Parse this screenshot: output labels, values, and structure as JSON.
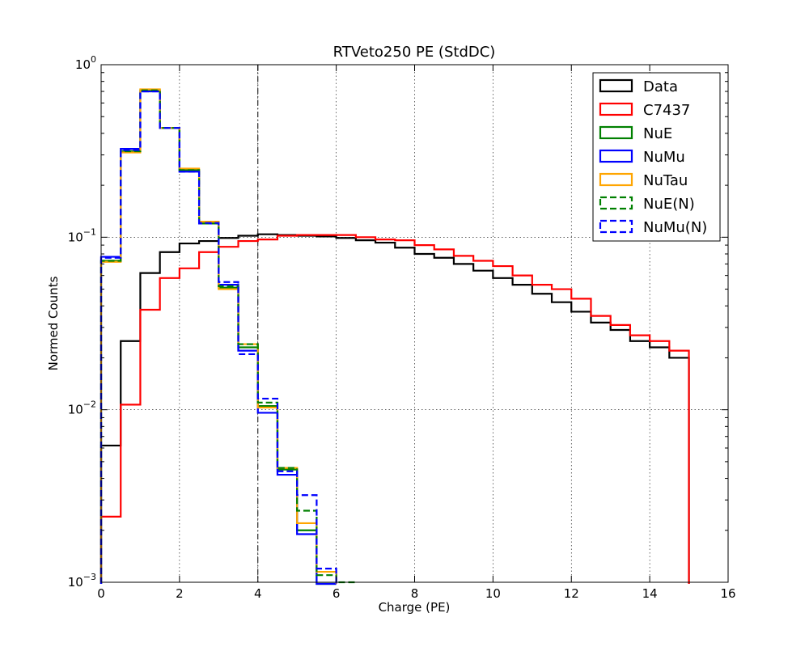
{
  "chart_data": {
    "type": "line",
    "title": "RTVeto250 PE (StdDC)",
    "xlabel": "Charge (PE)",
    "ylabel": "Normed Counts",
    "xlim": [
      0,
      16
    ],
    "ylim": [
      0.001,
      1
    ],
    "yscale": "log",
    "grid": true,
    "legend_position": "top-right",
    "x_ticks": [
      {
        "value": 0,
        "label": "0"
      },
      {
        "value": 2,
        "label": "2"
      },
      {
        "value": 4,
        "label": "4"
      },
      {
        "value": 6,
        "label": "6"
      },
      {
        "value": 8,
        "label": "8"
      },
      {
        "value": 10,
        "label": "10"
      },
      {
        "value": 12,
        "label": "12"
      },
      {
        "value": 14,
        "label": "14"
      },
      {
        "value": 16,
        "label": "16"
      }
    ],
    "y_ticks": [
      {
        "value": 0.001,
        "base": "10",
        "exp": "−3"
      },
      {
        "value": 0.01,
        "base": "10",
        "exp": "−2"
      },
      {
        "value": 0.1,
        "base": "10",
        "exp": "−1"
      },
      {
        "value": 1,
        "base": "10",
        "exp": "0"
      }
    ],
    "cut_line_x": 4,
    "bin_edges": [
      0,
      0.5,
      1,
      1.5,
      2,
      2.5,
      3,
      3.5,
      4,
      4.5,
      5,
      5.5,
      6,
      6.5,
      7,
      7.5,
      8,
      8.5,
      9,
      9.5,
      10,
      10.5,
      11,
      11.5,
      12,
      12.5,
      13,
      13.5,
      14,
      14.5,
      15
    ],
    "series": [
      {
        "name": "Data",
        "color": "#000000",
        "dash": "solid",
        "values": [
          0.0062,
          0.025,
          0.062,
          0.082,
          0.092,
          0.095,
          0.099,
          0.102,
          0.104,
          0.103,
          0.102,
          0.101,
          0.099,
          0.096,
          0.093,
          0.087,
          0.08,
          0.076,
          0.07,
          0.064,
          0.058,
          0.053,
          0.047,
          0.042,
          0.037,
          0.032,
          0.029,
          0.025,
          0.023,
          0.02
        ]
      },
      {
        "name": "C7437",
        "color": "#ff0000",
        "dash": "solid",
        "values": [
          0.0024,
          0.0107,
          0.038,
          0.058,
          0.066,
          0.082,
          0.088,
          0.095,
          0.097,
          0.102,
          0.103,
          0.103,
          0.103,
          0.1,
          0.097,
          0.096,
          0.09,
          0.085,
          0.078,
          0.073,
          0.068,
          0.06,
          0.053,
          0.05,
          0.044,
          0.035,
          0.031,
          0.027,
          0.025,
          0.022
        ]
      },
      {
        "name": "NuE",
        "color": "#008000",
        "dash": "solid",
        "values": [
          0.073,
          0.315,
          0.71,
          0.43,
          0.245,
          0.122,
          0.051,
          0.023,
          0.0105,
          0.0045,
          0.002,
          0.0009
        ]
      },
      {
        "name": "NuMu",
        "color": "#0000ff",
        "dash": "solid",
        "values": [
          0.077,
          0.325,
          0.7,
          0.43,
          0.24,
          0.12,
          0.053,
          0.022,
          0.0096,
          0.0042,
          0.0019,
          0.0009
        ]
      },
      {
        "name": "NuTau",
        "color": "#ffa500",
        "dash": "solid",
        "values": [
          0.072,
          0.31,
          0.72,
          0.43,
          0.25,
          0.123,
          0.05,
          0.024,
          0.0103,
          0.0046,
          0.0022,
          0.00115
        ]
      },
      {
        "name": "NuE(N)",
        "color": "#008000",
        "dash": "dashed",
        "values": [
          0.073,
          0.315,
          0.71,
          0.43,
          0.245,
          0.12,
          0.052,
          0.024,
          0.011,
          0.0046,
          0.0026,
          0.0011,
          0.001
        ]
      },
      {
        "name": "NuMu(N)",
        "color": "#0000ff",
        "dash": "dashed",
        "values": [
          0.076,
          0.32,
          0.7,
          0.43,
          0.24,
          0.121,
          0.055,
          0.021,
          0.0116,
          0.0044,
          0.0032,
          0.0012
        ]
      }
    ]
  }
}
